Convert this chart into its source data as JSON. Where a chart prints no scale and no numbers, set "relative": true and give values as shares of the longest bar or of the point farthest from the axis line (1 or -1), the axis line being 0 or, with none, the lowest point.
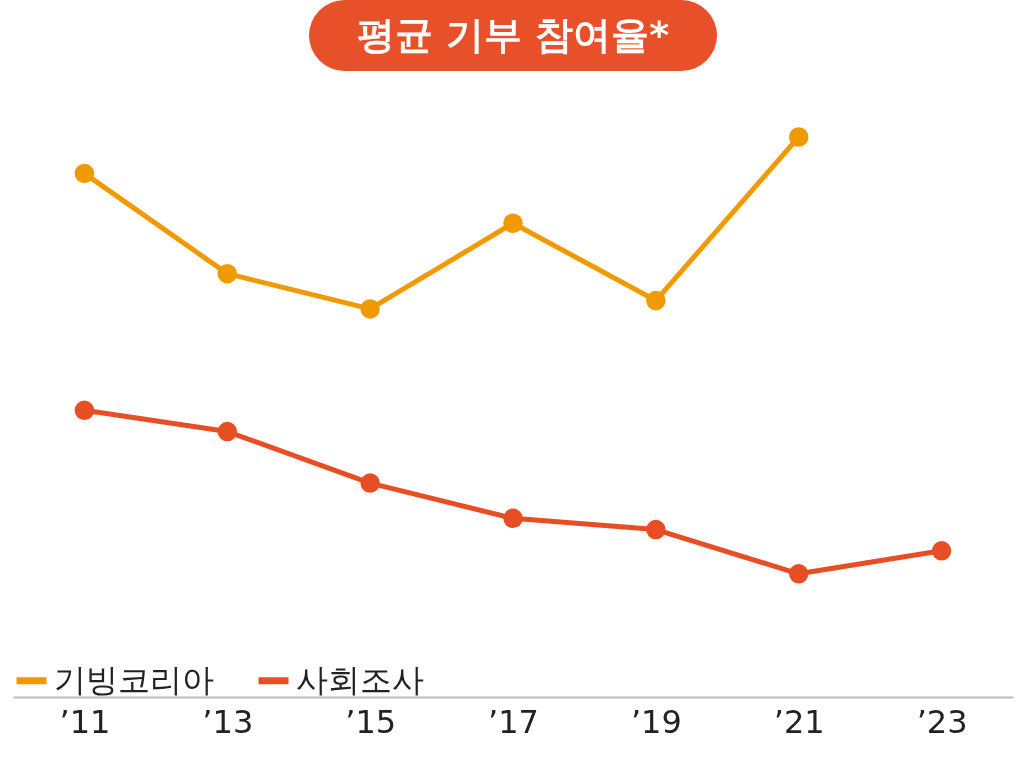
{
  "chart_data": {
    "type": "line",
    "title": "평균 기부 참여율*",
    "relative": true,
    "categories": [
      "’11",
      "’13",
      "’15",
      "’17",
      "’19",
      "’21",
      "’23"
    ],
    "series": [
      {
        "name": "기빙코리아",
        "color": "#f09a00",
        "values": [
          0.935,
          0.756,
          0.693,
          0.846,
          0.708,
          1.0,
          null
        ]
      },
      {
        "name": "사회조사",
        "color": "#e84e23",
        "values": [
          0.512,
          0.474,
          0.382,
          0.319,
          0.299,
          0.22,
          0.261
        ]
      }
    ],
    "marker": "circle",
    "legend": "bottom left",
    "grid": false
  }
}
